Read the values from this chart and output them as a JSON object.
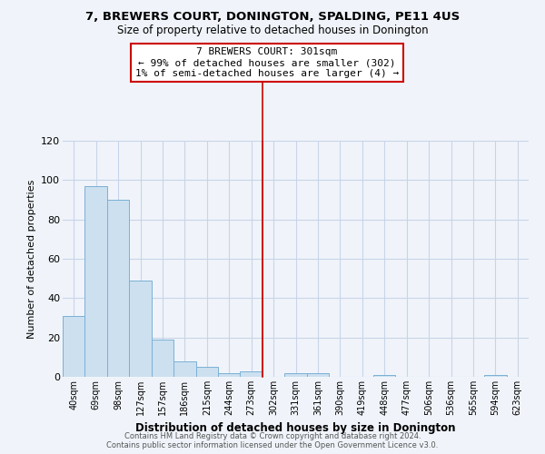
{
  "title": "7, BREWERS COURT, DONINGTON, SPALDING, PE11 4US",
  "subtitle": "Size of property relative to detached houses in Donington",
  "xlabel": "Distribution of detached houses by size in Donington",
  "ylabel": "Number of detached properties",
  "bar_labels": [
    "40sqm",
    "69sqm",
    "98sqm",
    "127sqm",
    "157sqm",
    "186sqm",
    "215sqm",
    "244sqm",
    "273sqm",
    "302sqm",
    "331sqm",
    "361sqm",
    "390sqm",
    "419sqm",
    "448sqm",
    "477sqm",
    "506sqm",
    "536sqm",
    "565sqm",
    "594sqm",
    "623sqm"
  ],
  "bar_values": [
    31,
    97,
    90,
    49,
    19,
    8,
    5,
    2,
    3,
    0,
    2,
    2,
    0,
    0,
    1,
    0,
    0,
    0,
    0,
    1,
    0
  ],
  "bar_color": "#cce0f0",
  "bar_edge_color": "#7ab0d4",
  "ylim": [
    0,
    120
  ],
  "yticks": [
    0,
    20,
    40,
    60,
    80,
    100,
    120
  ],
  "vline_color": "#cc0000",
  "annotation_title": "7 BREWERS COURT: 301sqm",
  "annotation_line1": "← 99% of detached houses are smaller (302)",
  "annotation_line2": "1% of semi-detached houses are larger (4) →",
  "annotation_box_color": "#ffffff",
  "annotation_box_edge": "#cc0000",
  "footer1": "Contains HM Land Registry data © Crown copyright and database right 2024.",
  "footer2": "Contains public sector information licensed under the Open Government Licence v3.0.",
  "bg_color": "#f0f4fa",
  "grid_color": "#c8d4e8"
}
